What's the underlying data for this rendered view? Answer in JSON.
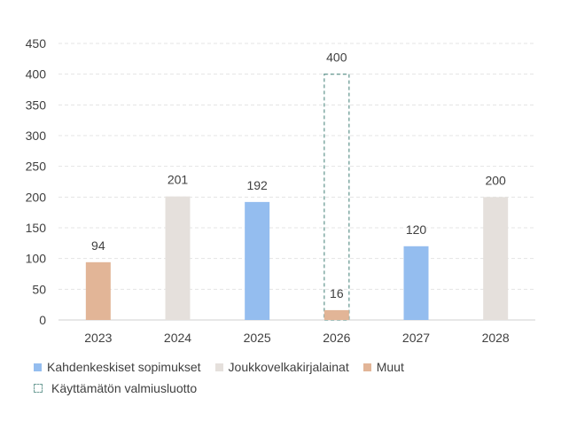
{
  "chart_data": {
    "type": "bar",
    "categories": [
      "2023",
      "2024",
      "2025",
      "2026",
      "2027",
      "2028"
    ],
    "ylim": [
      0,
      450
    ],
    "yticks": [
      0,
      50,
      100,
      150,
      200,
      250,
      300,
      350,
      400,
      450
    ],
    "grid": true,
    "legend_position": "bottom-left",
    "bars": [
      {
        "category": "2023",
        "value": 94,
        "label": "94",
        "series": "Muut"
      },
      {
        "category": "2024",
        "value": 201,
        "label": "201",
        "series": "Joukkovelkakirjalainat"
      },
      {
        "category": "2025",
        "value": 192,
        "label": "192",
        "series": "Kahdenkeskiset sopimukset"
      },
      {
        "category": "2026",
        "value": 16,
        "label": "16",
        "series": "Muut"
      },
      {
        "category": "2027",
        "value": 120,
        "label": "120",
        "series": "Kahdenkeskiset sopimukset"
      },
      {
        "category": "2028",
        "value": 200,
        "label": "200",
        "series": "Joukkovelkakirjalainat"
      }
    ],
    "outline_bars": [
      {
        "category": "2026",
        "value": 400,
        "label": "400",
        "series": "Käyttämätön valmiusluotto"
      }
    ],
    "series": [
      {
        "name": "Kahdenkeskiset sopimukset",
        "color": "#94bdef"
      },
      {
        "name": "Joukkovelkakirjalainat",
        "color": "#e5e0dc"
      },
      {
        "name": "Muut",
        "color": "#e2b597"
      },
      {
        "name": "Käyttämätön valmiusluotto",
        "color": "#6e9d96",
        "style": "dashed-outline"
      }
    ]
  },
  "legend": {
    "row1": [
      "Kahdenkeskiset sopimukset",
      "Joukkovelkakirjalainat",
      "Muut"
    ],
    "row2": [
      "Käyttämätön valmiusluotto"
    ]
  }
}
